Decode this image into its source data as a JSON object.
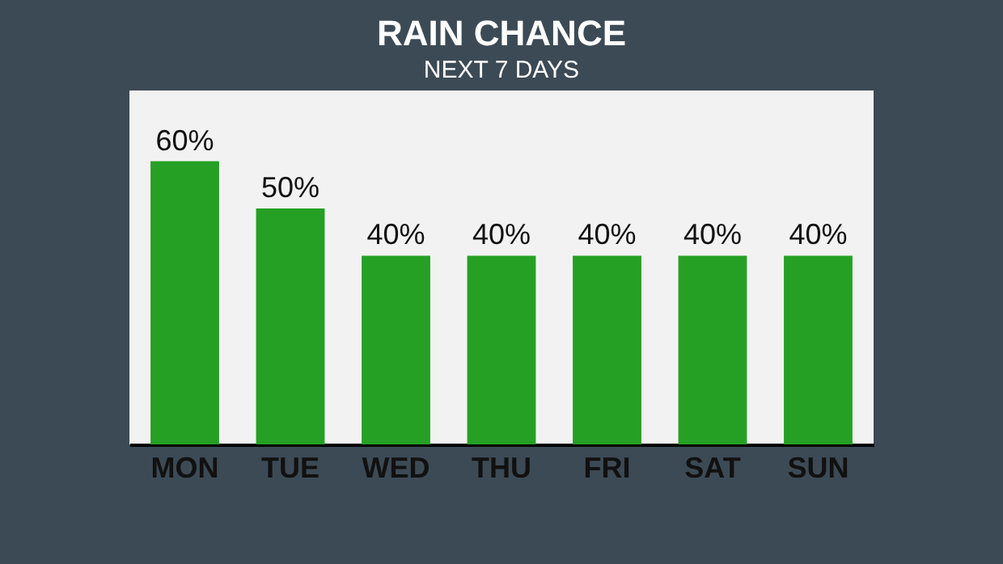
{
  "chart_data": {
    "type": "bar",
    "title": "RAIN CHANCE",
    "subtitle": "NEXT 7 DAYS",
    "categories": [
      "MON",
      "TUE",
      "WED",
      "THU",
      "FRI",
      "SAT",
      "SUN"
    ],
    "values": [
      60,
      50,
      40,
      40,
      40,
      40,
      40
    ],
    "value_labels": [
      "60%",
      "50%",
      "40%",
      "40%",
      "40%",
      "40%",
      "40%"
    ],
    "color": "#25a025"
  }
}
